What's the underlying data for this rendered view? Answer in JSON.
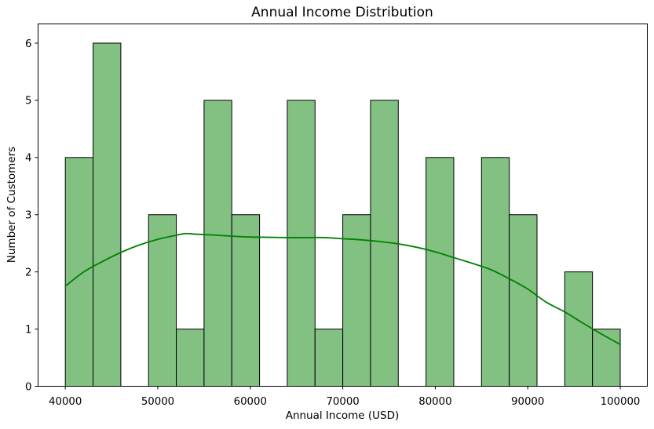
{
  "chart_data": {
    "type": "bar",
    "subtype": "histogram_with_kde",
    "title": "Annual Income Distribution",
    "xlabel": "Annual Income (USD)",
    "ylabel": "Number of Customers",
    "grid": false,
    "legend": "none",
    "xlim": [
      37000,
      103000
    ],
    "ylim": [
      0,
      6.3
    ],
    "x_tick_values": [
      40000,
      50000,
      60000,
      70000,
      80000,
      90000,
      100000
    ],
    "x_tick_labels": [
      "40000",
      "50000",
      "60000",
      "70000",
      "80000",
      "90000",
      "100000"
    ],
    "y_tick_values": [
      0,
      1,
      2,
      3,
      4,
      5,
      6
    ],
    "y_tick_labels": [
      "0",
      "1",
      "2",
      "3",
      "4",
      "5",
      "6"
    ],
    "bin_width": 3000,
    "bin_edges": [
      40000,
      43000,
      46000,
      49000,
      52000,
      55000,
      58000,
      61000,
      64000,
      67000,
      70000,
      73000,
      76000,
      79000,
      82000,
      85000,
      88000,
      91000,
      94000,
      97000,
      100000
    ],
    "counts": [
      4,
      6,
      0,
      3,
      1,
      5,
      3,
      0,
      5,
      1,
      3,
      5,
      0,
      4,
      0,
      4,
      3,
      0,
      2,
      1
    ],
    "kde_curve": {
      "name": "kde-smoothed-density",
      "points": [
        [
          40000,
          1.75
        ],
        [
          42000,
          2.0
        ],
        [
          44000,
          2.18
        ],
        [
          46000,
          2.34
        ],
        [
          48000,
          2.47
        ],
        [
          50000,
          2.57
        ],
        [
          52000,
          2.64
        ],
        [
          53000,
          2.67
        ],
        [
          54000,
          2.66
        ],
        [
          56000,
          2.645
        ],
        [
          58000,
          2.625
        ],
        [
          60000,
          2.61
        ],
        [
          62000,
          2.605
        ],
        [
          64000,
          2.6
        ],
        [
          66000,
          2.6
        ],
        [
          68000,
          2.6
        ],
        [
          70000,
          2.58
        ],
        [
          72000,
          2.56
        ],
        [
          74000,
          2.53
        ],
        [
          76000,
          2.49
        ],
        [
          78000,
          2.43
        ],
        [
          80000,
          2.35
        ],
        [
          82000,
          2.25
        ],
        [
          84000,
          2.15
        ],
        [
          86000,
          2.04
        ],
        [
          88000,
          1.88
        ],
        [
          90000,
          1.7
        ],
        [
          92000,
          1.47
        ],
        [
          94000,
          1.3
        ],
        [
          96000,
          1.1
        ],
        [
          98000,
          0.91
        ],
        [
          100000,
          0.73
        ]
      ]
    },
    "colors": {
      "bar_fill": "#82c182",
      "bar_edge": "#000000",
      "kde_line": "#008000",
      "spine": "#000000",
      "tick_text": "#000000",
      "background": "#ffffff"
    }
  }
}
